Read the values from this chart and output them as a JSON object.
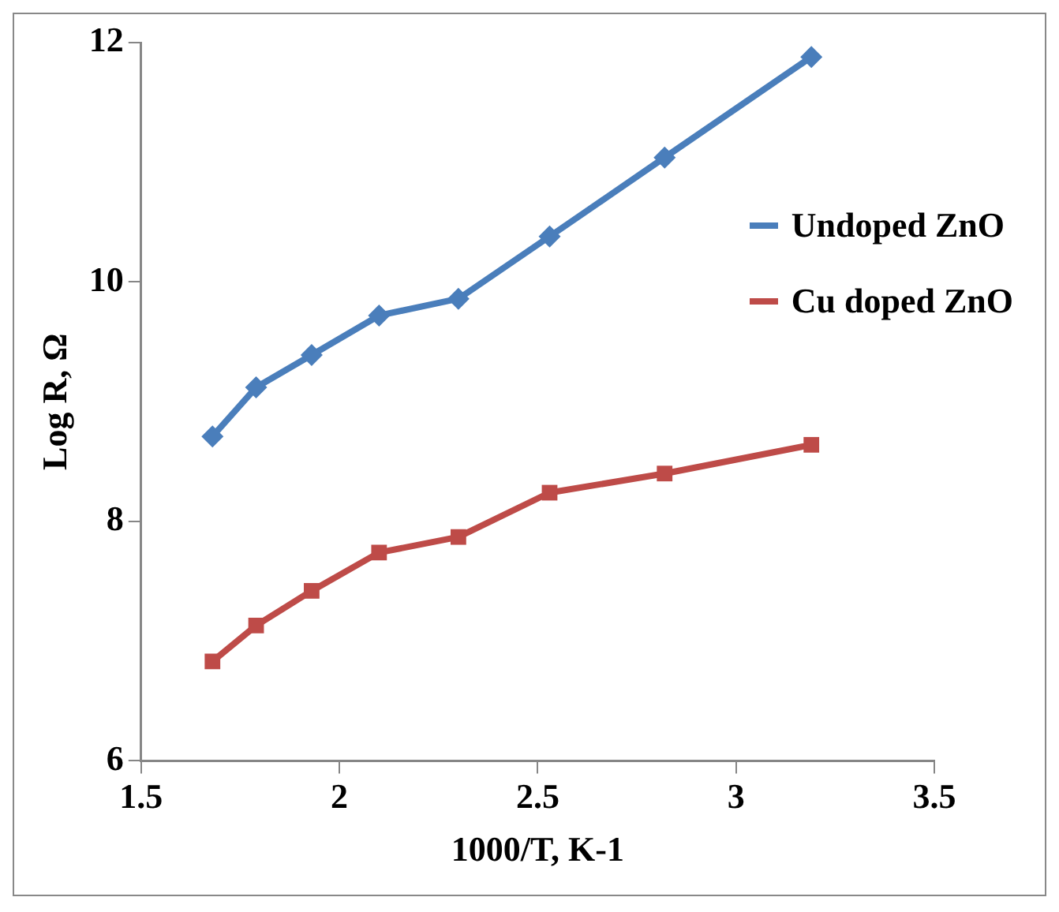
{
  "chart_data": {
    "type": "line",
    "xlabel": "1000/T, K-1",
    "ylabel": "Log R, Ω",
    "xlim": [
      1.5,
      3.5
    ],
    "xticks": [
      1.5,
      2,
      2.5,
      3,
      3.5
    ],
    "ylim": [
      6,
      12
    ],
    "yticks": [
      6,
      8,
      10,
      12
    ],
    "grid": false,
    "legend": "right",
    "x": [
      1.68,
      1.79,
      1.93,
      2.1,
      2.3,
      2.53,
      2.82,
      3.19
    ],
    "series": [
      {
        "name": "Undoped ZnO",
        "color": "#4a7ebb",
        "marker": "diamond",
        "values": [
          8.71,
          9.12,
          9.39,
          9.72,
          9.86,
          10.38,
          11.04,
          11.88
        ]
      },
      {
        "name": "Cu doped ZnO",
        "color": "#be4b48",
        "marker": "square",
        "values": [
          6.83,
          7.13,
          7.42,
          7.74,
          7.87,
          8.24,
          8.4,
          8.64
        ]
      }
    ]
  }
}
